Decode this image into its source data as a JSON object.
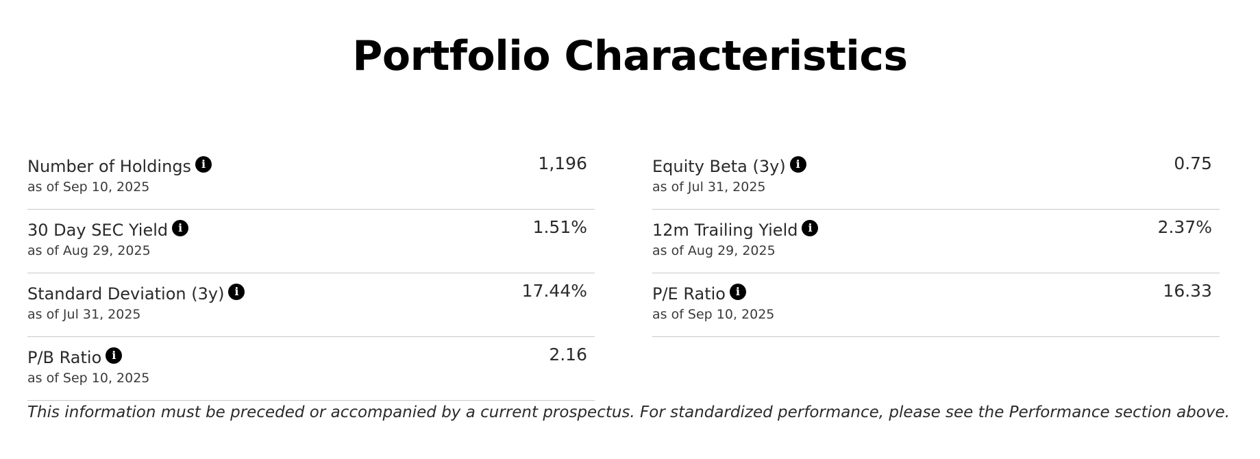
{
  "title": "Portfolio Characteristics",
  "icons": {
    "info": "info-icon"
  },
  "info_glyph": "i",
  "left_column": [
    {
      "label": "Number of Holdings",
      "as_of": "as of Sep 10, 2025",
      "value": "1,196"
    },
    {
      "label": "30 Day SEC Yield",
      "as_of": "as of Aug 29, 2025",
      "value": "1.51%"
    },
    {
      "label": "Standard Deviation (3y)",
      "as_of": "as of Jul 31, 2025",
      "value": "17.44%"
    },
    {
      "label": "P/B Ratio",
      "as_of": "as of Sep 10, 2025",
      "value": "2.16"
    }
  ],
  "right_column": [
    {
      "label": "Equity Beta (3y)",
      "as_of": "as of Jul 31, 2025",
      "value": "0.75"
    },
    {
      "label": "12m Trailing Yield",
      "as_of": "as of Aug 29, 2025",
      "value": "2.37%"
    },
    {
      "label": "P/E Ratio",
      "as_of": "as of Sep 10, 2025",
      "value": "16.33"
    }
  ],
  "disclaimer": "This information must be preceded or accompanied by a current prospectus. For standardized performance, please see the Performance section above."
}
